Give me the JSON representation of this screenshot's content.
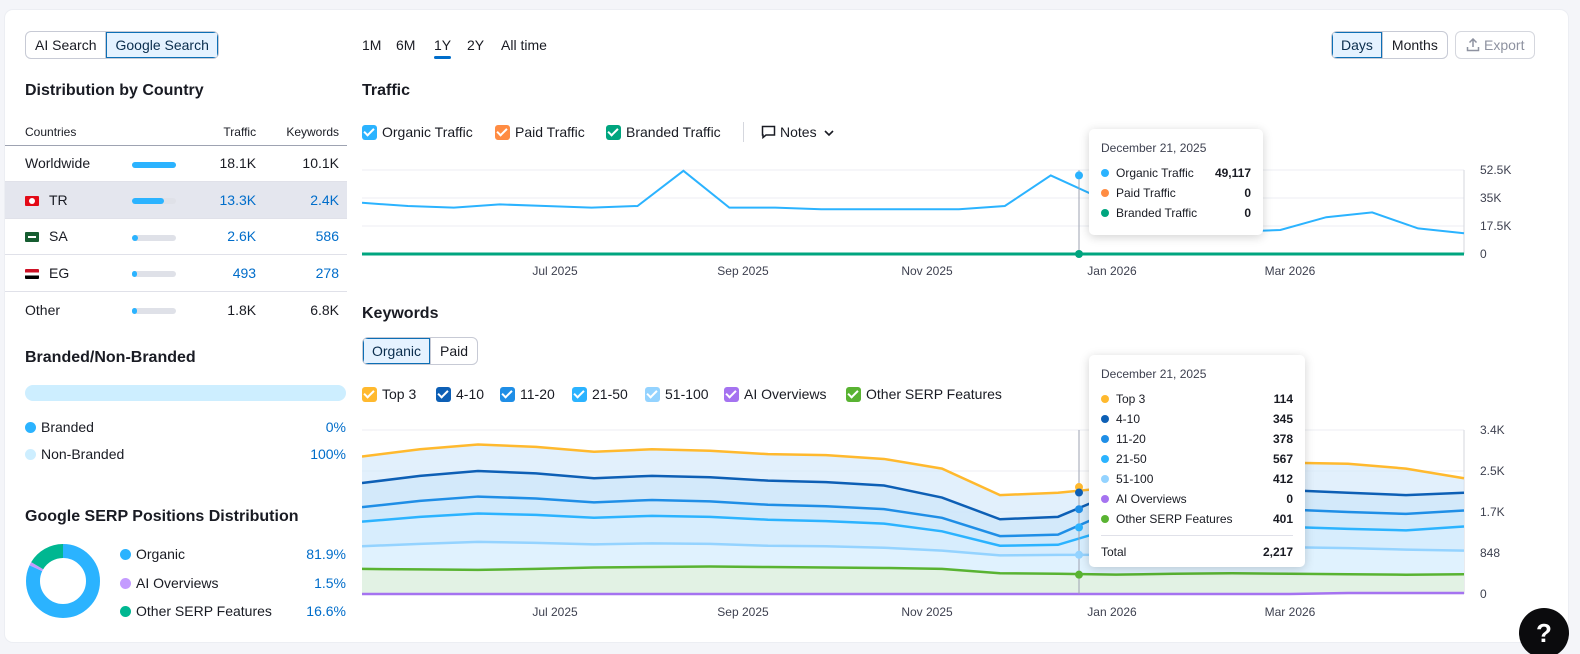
{
  "source_toggle": {
    "ai_search": "AI Search",
    "google_search": "Google Search"
  },
  "periods": [
    "1M",
    "6M",
    "1Y",
    "2Y",
    "All time"
  ],
  "granularity": {
    "days": "Days",
    "months": "Months"
  },
  "export_label": "Export",
  "country": {
    "title": "Distribution by Country",
    "headers": {
      "countries": "Countries",
      "traffic": "Traffic",
      "keywords": "Keywords"
    },
    "rows": [
      {
        "name": "Worldwide",
        "traffic": "18.1K",
        "keywords": "10.1K",
        "share": 1.0
      },
      {
        "name": "TR",
        "traffic": "13.3K",
        "keywords": "2.4K",
        "share": 0.73
      },
      {
        "name": "SA",
        "traffic": "2.6K",
        "keywords": "586",
        "share": 0.14
      },
      {
        "name": "EG",
        "traffic": "493",
        "keywords": "278",
        "share": 0.03
      }
    ],
    "other": {
      "name": "Other",
      "traffic": "1.8K",
      "keywords": "6.8K",
      "share": 0.1
    }
  },
  "branded": {
    "title": "Branded/Non-Branded",
    "items": [
      {
        "label": "Branded",
        "value": "0%",
        "color": "#2bb3ff"
      },
      {
        "label": "Non-Branded",
        "value": "100%",
        "color": "#cdeeff"
      }
    ]
  },
  "serp": {
    "title": "Google SERP Positions Distribution",
    "items": [
      {
        "label": "Organic",
        "value": "81.9%",
        "pct": 81.9,
        "color": "#2bb3ff"
      },
      {
        "label": "AI Overviews",
        "value": "1.5%",
        "pct": 1.5,
        "color": "#c49bff"
      },
      {
        "label": "Other SERP Features",
        "value": "16.6%",
        "pct": 16.6,
        "color": "#00b791"
      }
    ]
  },
  "traffic": {
    "title": "Traffic",
    "legend": [
      {
        "label": "Organic Traffic",
        "color": "#2bb3ff"
      },
      {
        "label": "Paid Traffic",
        "color": "#ff8c43"
      },
      {
        "label": "Branded Traffic",
        "color": "#00a57f"
      }
    ],
    "notes_label": "Notes",
    "tooltip": {
      "date": "December 21, 2025",
      "rows": [
        {
          "label": "Organic Traffic",
          "value": "49,117",
          "color": "#2bb3ff"
        },
        {
          "label": "Paid Traffic",
          "value": "0",
          "color": "#ff8c43"
        },
        {
          "label": "Branded Traffic",
          "value": "0",
          "color": "#00a57f"
        }
      ]
    }
  },
  "keywords": {
    "title": "Keywords",
    "tabs": {
      "organic": "Organic",
      "paid": "Paid"
    },
    "legend": [
      {
        "label": "Top 3",
        "color": "#ffb92e"
      },
      {
        "label": "4-10",
        "color": "#0d5fb5"
      },
      {
        "label": "11-20",
        "color": "#1f8ee6"
      },
      {
        "label": "21-50",
        "color": "#2bb3ff"
      },
      {
        "label": "51-100",
        "color": "#94d3ff"
      },
      {
        "label": "AI Overviews",
        "color": "#a573f0"
      },
      {
        "label": "Other SERP Features",
        "color": "#59b332"
      }
    ],
    "tooltip": {
      "date": "December 21, 2025",
      "rows": [
        {
          "label": "Top 3",
          "value": "114",
          "color": "#ffb92e"
        },
        {
          "label": "4-10",
          "value": "345",
          "color": "#0d5fb5"
        },
        {
          "label": "11-20",
          "value": "378",
          "color": "#1f8ee6"
        },
        {
          "label": "21-50",
          "value": "567",
          "color": "#2bb3ff"
        },
        {
          "label": "51-100",
          "value": "412",
          "color": "#94d3ff"
        },
        {
          "label": "AI Overviews",
          "value": "0",
          "color": "#a573f0"
        },
        {
          "label": "Other SERP Features",
          "value": "401",
          "color": "#59b332"
        }
      ],
      "total_label": "Total",
      "total_value": "2,217"
    }
  },
  "chart_data": [
    {
      "type": "line",
      "title": "Traffic",
      "x_ticks": [
        "Jul 2025",
        "Sep 2025",
        "Nov 2025",
        "Jan 2026",
        "Mar 2026"
      ],
      "y_ticks": [
        "52.5K",
        "35K",
        "17.5K",
        "0"
      ],
      "ylim": [
        0,
        52500
      ],
      "series": [
        {
          "name": "Organic Traffic",
          "values": [
            32000,
            30000,
            29000,
            31000,
            30000,
            29000,
            30000,
            52000,
            29000,
            29000,
            28000,
            28000,
            28000,
            28000,
            30000,
            49117,
            36000,
            32000,
            30000,
            14000,
            15000,
            23000,
            26000,
            16000,
            13000
          ]
        },
        {
          "name": "Paid Traffic",
          "values": [
            0,
            0,
            0,
            0,
            0,
            0,
            0,
            0,
            0,
            0,
            0,
            0,
            0,
            0,
            0,
            0,
            0,
            0,
            0,
            0,
            0,
            0,
            0,
            0,
            0
          ]
        },
        {
          "name": "Branded Traffic",
          "values": [
            0,
            0,
            0,
            0,
            0,
            0,
            0,
            0,
            0,
            0,
            0,
            0,
            0,
            0,
            0,
            0,
            0,
            0,
            0,
            0,
            0,
            0,
            0,
            0,
            0
          ]
        }
      ]
    },
    {
      "type": "area",
      "title": "Keywords",
      "x_ticks": [
        "Jul 2025",
        "Sep 2025",
        "Nov 2025",
        "Jan 2026",
        "Mar 2026"
      ],
      "y_ticks": [
        "3.4K",
        "2.5K",
        "1.7K",
        "848",
        "0"
      ],
      "ylim": [
        0,
        3400
      ],
      "series": [
        {
          "name": "Top 3",
          "values": [
            2850,
            3000,
            3100,
            3050,
            2950,
            3000,
            2970,
            2900,
            2880,
            2800,
            2600,
            2050,
            2100,
            2217,
            2700,
            2750,
            2720,
            2700,
            2600,
            2400
          ]
        },
        {
          "name": "4-10",
          "values": [
            2300,
            2450,
            2550,
            2500,
            2400,
            2450,
            2420,
            2350,
            2320,
            2250,
            2000,
            1550,
            1600,
            2103,
            2150,
            2180,
            2150,
            2100,
            2050,
            2100
          ]
        },
        {
          "name": "11-20",
          "values": [
            1800,
            1930,
            2020,
            1980,
            1900,
            1950,
            1920,
            1850,
            1820,
            1760,
            1580,
            1200,
            1230,
            1758,
            1760,
            1780,
            1750,
            1700,
            1660,
            1730
          ]
        },
        {
          "name": "21-50",
          "values": [
            1500,
            1600,
            1670,
            1640,
            1580,
            1620,
            1600,
            1540,
            1510,
            1460,
            1300,
            1000,
            1020,
            1380,
            1400,
            1410,
            1390,
            1350,
            1320,
            1400
          ]
        },
        {
          "name": "51-100",
          "values": [
            990,
            1040,
            1080,
            1060,
            1030,
            1050,
            1040,
            1000,
            990,
            960,
            900,
            800,
            810,
            813,
            960,
            980,
            970,
            950,
            920,
            900
          ]
        },
        {
          "name": "AI Overviews",
          "values": [
            0,
            0,
            0,
            0,
            0,
            0,
            0,
            0,
            0,
            0,
            0,
            0,
            0,
            0,
            0,
            0,
            0,
            20,
            20,
            20
          ]
        },
        {
          "name": "Other SERP Features",
          "values": [
            520,
            510,
            500,
            520,
            550,
            560,
            570,
            560,
            550,
            540,
            520,
            430,
            420,
            401,
            420,
            430,
            420,
            410,
            400,
            410
          ]
        }
      ]
    }
  ]
}
